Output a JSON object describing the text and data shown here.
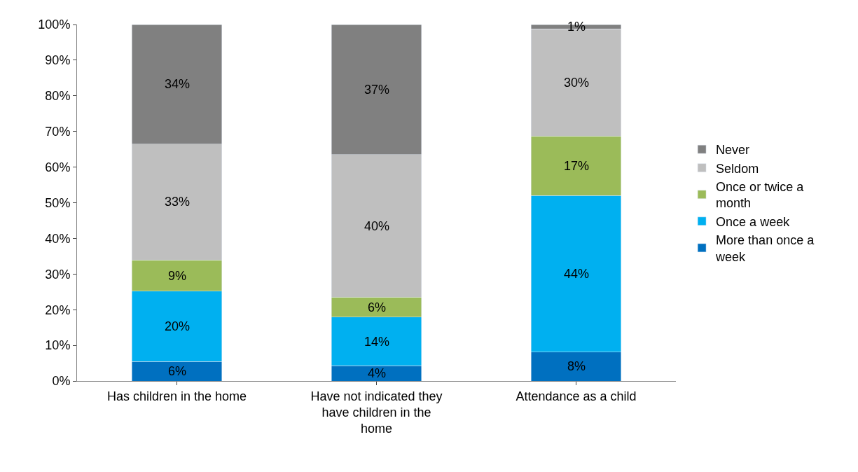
{
  "chart_data": {
    "type": "bar",
    "stacked": true,
    "categories": [
      "Has children in the home",
      "Have not indicated they have children in the home",
      "Attendance as a child"
    ],
    "series": [
      {
        "name": "More than once a week",
        "color": "#0070c0",
        "values": [
          5.5,
          4.3,
          8.1
        ],
        "value_labels": [
          "6%",
          "4%",
          "8%"
        ]
      },
      {
        "name": "Once a week",
        "color": "#00b0f0",
        "values": [
          19.7,
          13.6,
          43.9
        ],
        "value_labels": [
          "20%",
          "14%",
          "44%"
        ]
      },
      {
        "name": "Once or twice a month",
        "color": "#9bbb59",
        "values": [
          8.7,
          5.6,
          16.7
        ],
        "value_labels": [
          "9%",
          "6%",
          "17%"
        ]
      },
      {
        "name": "Seldom",
        "color": "#bfbfbf",
        "values": [
          32.6,
          40.0,
          30.1
        ],
        "value_labels": [
          "33%",
          "40%",
          "30%"
        ]
      },
      {
        "name": "Never",
        "color": "#808080",
        "values": [
          33.5,
          36.5,
          1.2
        ],
        "value_labels": [
          "34%",
          "37%",
          "1%"
        ]
      }
    ],
    "ylim": [
      0,
      100
    ],
    "yticks": [
      {
        "value": 0,
        "label": "0%"
      },
      {
        "value": 10,
        "label": "10%"
      },
      {
        "value": 20,
        "label": "20%"
      },
      {
        "value": 30,
        "label": "30%"
      },
      {
        "value": 40,
        "label": "40%"
      },
      {
        "value": 50,
        "label": "50%"
      },
      {
        "value": 60,
        "label": "60%"
      },
      {
        "value": 70,
        "label": "70%"
      },
      {
        "value": 80,
        "label": "80%"
      },
      {
        "value": 90,
        "label": "90%"
      },
      {
        "value": 100,
        "label": "100%"
      }
    ],
    "grid": false,
    "legend": "right"
  }
}
